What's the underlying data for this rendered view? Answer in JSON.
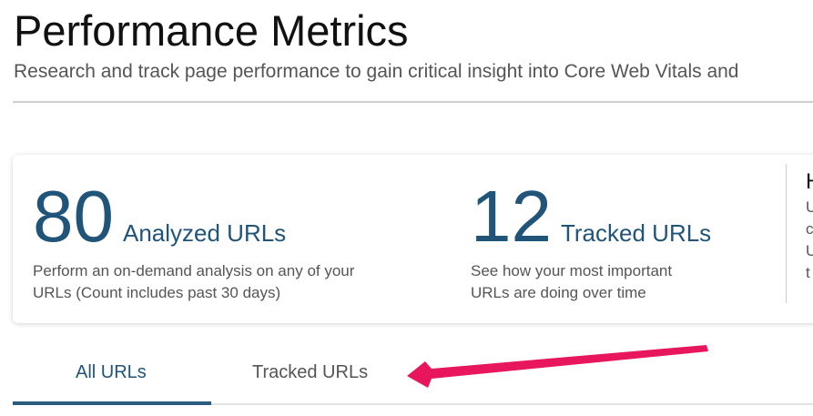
{
  "header": {
    "title": "Performance Metrics",
    "subtitle": "Research and track page performance to gain critical insight into Core Web Vitals and"
  },
  "stats": [
    {
      "value": "80",
      "label": "Analyzed URLs",
      "description": "Perform an on-demand analysis on any of your URLs (Count includes past 30 days)"
    },
    {
      "value": "12",
      "label": "Tracked URLs",
      "description": "See how your most important URLs are doing over time"
    }
  ],
  "third_panel": {
    "heading": "H",
    "lines": [
      "U",
      "c",
      "U",
      "t"
    ]
  },
  "tabs": [
    {
      "label": "All URLs",
      "active": true
    },
    {
      "label": "Tracked URLs",
      "active": false
    }
  ],
  "colors": {
    "accent": "#215479",
    "annotation_arrow": "#e8175d"
  }
}
